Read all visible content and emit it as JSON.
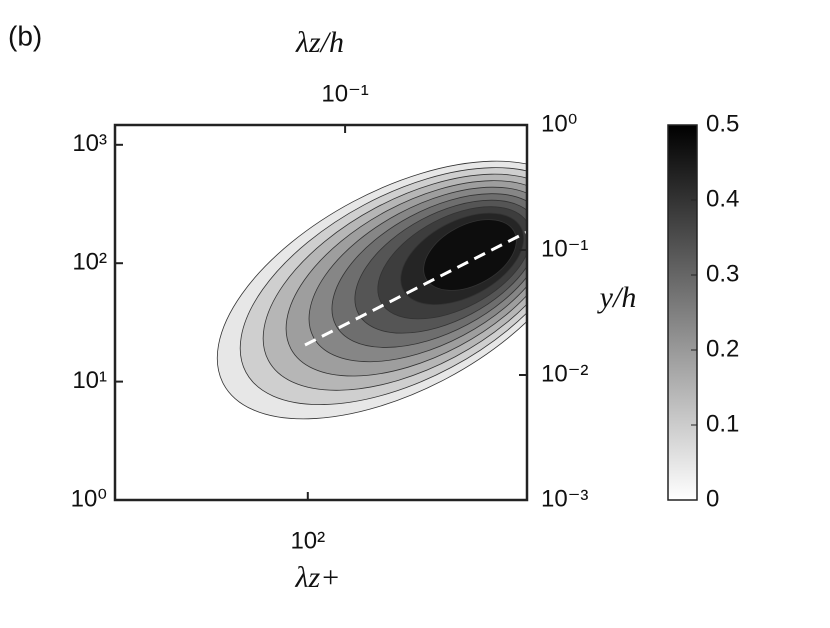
{
  "chart_data": {
    "type": "contour",
    "panel_label": "(b)",
    "x_label": "λz+",
    "x2_label": "λz/h",
    "y2_label": "y/h",
    "xlim": [
      22.8,
      537
    ],
    "xticks": [
      {
        "value": 100,
        "label": "10²"
      }
    ],
    "x2lim": [
      0.0171,
      0.404
    ],
    "x2ticks": [
      {
        "value": 0.1,
        "label": "10⁻¹"
      }
    ],
    "ylim": [
      1,
      1470
    ],
    "yticks": [
      {
        "value": 1,
        "label": "10⁰"
      },
      {
        "value": 10,
        "label": "10¹"
      },
      {
        "value": 100,
        "label": "10²"
      },
      {
        "value": 1000,
        "label": "10³"
      }
    ],
    "y2lim": [
      0.001,
      1
    ],
    "y2ticks": [
      {
        "value": 0.001,
        "label": "10⁻³"
      },
      {
        "value": 0.01,
        "label": "10⁻²"
      },
      {
        "value": 0.1,
        "label": "10⁻¹"
      },
      {
        "value": 1,
        "label": "10⁰"
      }
    ],
    "log_x": true,
    "log_y": true,
    "levels": [
      0.05,
      0.1,
      0.15,
      0.2,
      0.25,
      0.3,
      0.35,
      0.4,
      0.45,
      0.5
    ],
    "clim": [
      0,
      0.5
    ],
    "cticks": [
      0,
      0.1,
      0.2,
      0.3,
      0.4,
      0.5
    ]
  }
}
